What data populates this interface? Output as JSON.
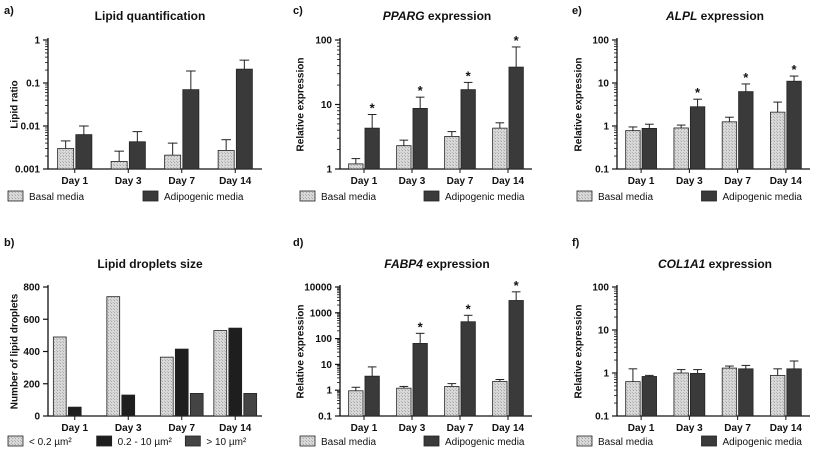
{
  "chart_data": [
    {
      "panel": "a)",
      "type": "bar",
      "title": "Lipid quantification",
      "title_italic": "",
      "ylabel": "Lipid ratio",
      "yscale": "log",
      "ylim": [
        0.001,
        1
      ],
      "yticks": [
        0.001,
        0.01,
        0.1,
        1
      ],
      "yticklabels": [
        "0.001",
        "0.01",
        "0.1",
        "1"
      ],
      "categories": [
        "Day 1",
        "Day 3",
        "Day 7",
        "Day 14"
      ],
      "series": [
        {
          "name": "Basal media",
          "values": [
            0.003,
            0.0015,
            0.0021,
            0.0027
          ],
          "errors": [
            0.0045,
            0.0026,
            0.004,
            0.0048
          ],
          "color": "#d2d2d2",
          "pattern": "light"
        },
        {
          "name": "Adipogenic media",
          "values": [
            0.0063,
            0.0043,
            0.07,
            0.21
          ],
          "errors": [
            0.01,
            0.0074,
            0.19,
            0.34
          ],
          "color": "#3a3a3a",
          "pattern": "dark"
        }
      ],
      "stars": [],
      "legend": "bottom"
    },
    {
      "panel": "b)",
      "type": "bar",
      "title": "Lipid droplets size",
      "title_italic": "",
      "ylabel": "Number of lipid droplets",
      "yscale": "linear",
      "ylim": [
        0,
        800
      ],
      "yticks": [
        0,
        200,
        400,
        600,
        800
      ],
      "yticklabels": [
        "0",
        "200",
        "400",
        "600",
        "800"
      ],
      "categories": [
        "Day 1",
        "Day 3",
        "Day 7",
        "Day 14"
      ],
      "series": [
        {
          "name": "< 0.2 µm²",
          "values": [
            490,
            740,
            365,
            530
          ],
          "color": "#c6c6c6",
          "pattern": "light"
        },
        {
          "name": "0.2 - 10 µm²",
          "values": [
            55,
            130,
            415,
            545
          ],
          "color": "#1e1e1e",
          "pattern": "dark"
        },
        {
          "name": "> 10 µm²",
          "values": [
            0,
            0,
            140,
            140
          ],
          "color": "#444444",
          "pattern": "dark"
        }
      ],
      "stars": [],
      "legend": "bottom"
    },
    {
      "panel": "c)",
      "type": "bar",
      "title": "",
      "title_italic": "PPARG",
      "title_rest": " expression",
      "ylabel": "Relative expression",
      "yscale": "log",
      "ylim": [
        1,
        100
      ],
      "yticks": [
        1,
        10,
        100
      ],
      "yticklabels": [
        "1",
        "10",
        "100"
      ],
      "categories": [
        "Day 1",
        "Day 3",
        "Day 7",
        "Day 14"
      ],
      "series": [
        {
          "name": "Basal media",
          "values": [
            1.2,
            2.3,
            3.2,
            4.3
          ],
          "errors": [
            1.45,
            2.8,
            3.8,
            5.2
          ],
          "color": "#e3e3e3",
          "pattern": "light"
        },
        {
          "name": "Adipogenic media",
          "values": [
            4.3,
            8.7,
            17,
            38
          ],
          "errors": [
            7,
            13,
            22,
            78
          ],
          "color": "#3a3a3a",
          "pattern": "dark"
        }
      ],
      "stars": [
        "*",
        "*",
        "*",
        "*"
      ],
      "legend": "bottom"
    },
    {
      "panel": "d)",
      "type": "bar",
      "title": "",
      "title_italic": "FABP4",
      "title_rest": " expression",
      "ylabel": "Relative expression",
      "yscale": "log",
      "ylim": [
        0.1,
        10000
      ],
      "yticks": [
        0.1,
        1,
        10,
        100,
        1000,
        10000
      ],
      "yticklabels": [
        "0.1",
        "1",
        "10",
        "100",
        "1000",
        "10000"
      ],
      "categories": [
        "Day 1",
        "Day 3",
        "Day 7",
        "Day 14"
      ],
      "series": [
        {
          "name": "Basal media",
          "values": [
            0.95,
            1.2,
            1.4,
            2.2
          ],
          "errors": [
            1.3,
            1.4,
            1.8,
            2.6
          ],
          "color": "#e3e3e3",
          "pattern": "light"
        },
        {
          "name": "Adipogenic media",
          "values": [
            3.5,
            65,
            450,
            3000
          ],
          "errors": [
            8,
            160,
            800,
            6500
          ],
          "color": "#3a3a3a",
          "pattern": "dark"
        }
      ],
      "stars": [
        "",
        "*",
        "*",
        "*"
      ],
      "legend": "bottom"
    },
    {
      "panel": "e)",
      "type": "bar",
      "title": "",
      "title_italic": "ALPL",
      "title_rest": " expression",
      "ylabel": "Relative expression",
      "yscale": "log",
      "ylim": [
        0.1,
        100
      ],
      "yticks": [
        0.1,
        1,
        10,
        100
      ],
      "yticklabels": [
        "0.1",
        "1",
        "10",
        "100"
      ],
      "categories": [
        "Day 1",
        "Day 3",
        "Day 7",
        "Day 14"
      ],
      "series": [
        {
          "name": "Basal media",
          "values": [
            0.78,
            0.9,
            1.25,
            2.1
          ],
          "errors": [
            0.95,
            1.05,
            1.6,
            3.6
          ],
          "color": "#e3e3e3",
          "pattern": "light"
        },
        {
          "name": "Adipogenic media",
          "values": [
            0.88,
            2.8,
            6.3,
            11
          ],
          "errors": [
            1.1,
            4.2,
            9.5,
            14.5
          ],
          "color": "#3a3a3a",
          "pattern": "dark"
        }
      ],
      "stars": [
        "",
        "*",
        "*",
        "*"
      ],
      "legend": "bottom"
    },
    {
      "panel": "f)",
      "type": "bar",
      "title": "",
      "title_italic": "COL1A1",
      "title_rest": " expression",
      "ylabel": "Relative expression",
      "yscale": "log",
      "ylim": [
        0.1,
        100
      ],
      "yticks": [
        0.1,
        1,
        10,
        100
      ],
      "yticklabels": [
        "0.1",
        "1",
        "10",
        "100"
      ],
      "categories": [
        "Day 1",
        "Day 3",
        "Day 7",
        "Day 14"
      ],
      "series": [
        {
          "name": "Basal media",
          "values": [
            0.63,
            1.0,
            1.3,
            0.88
          ],
          "errors": [
            1.25,
            1.2,
            1.45,
            1.25
          ],
          "color": "#e3e3e3",
          "pattern": "light"
        },
        {
          "name": "Adipogenic media",
          "values": [
            0.83,
            0.98,
            1.25,
            1.25
          ],
          "errors": [
            0.88,
            1.2,
            1.5,
            1.9
          ],
          "color": "#3a3a3a",
          "pattern": "dark"
        }
      ],
      "stars": [],
      "legend": "bottom"
    }
  ]
}
